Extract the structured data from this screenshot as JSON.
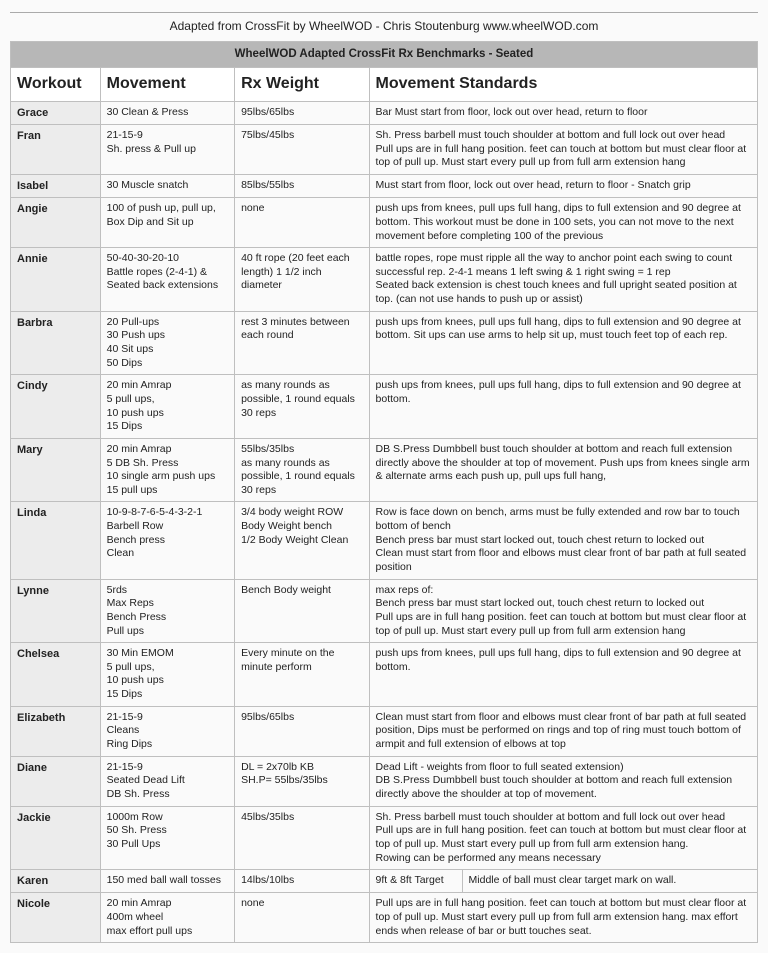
{
  "page_title": "Adapted from CrossFit by WheelWOD - Chris Stoutenburg www.wheelWOD.com",
  "table_banner": "WheelWOD Adapted CrossFit Rx Benchmarks - Seated",
  "columns": {
    "workout": "Workout",
    "movement": "Movement",
    "rx": "Rx Weight",
    "standards": "Movement Standards"
  },
  "rows": [
    {
      "workout": "Grace",
      "movement": "30 Clean & Press",
      "rx": "95lbs/65lbs",
      "standards": "Bar Must start from floor, lock out over head, return to floor"
    },
    {
      "workout": "Fran",
      "movement": "21-15-9\nSh. press & Pull up",
      "rx": "75lbs/45lbs",
      "standards": "Sh. Press barbell must touch shoulder at bottom and full lock out over head\nPull ups are in full hang position. feet can touch at bottom but must clear floor at top of pull up. Must start every pull up from full arm extension hang"
    },
    {
      "workout": "Isabel",
      "movement": "30 Muscle snatch",
      "rx": "85lbs/55lbs",
      "standards": "Must start from floor, lock out over head, return to floor - Snatch grip"
    },
    {
      "workout": "Angie",
      "movement": "100 of push up, pull up, Box Dip and Sit up",
      "rx": "none",
      "standards": "push ups from knees, pull ups full hang, dips to full extension and 90 degree at bottom. This workout must be done in 100 sets, you can not move to the next movement before completing 100 of the previous"
    },
    {
      "workout": "Annie",
      "movement": "50-40-30-20-10\nBattle ropes (2-4-1) & Seated back extensions",
      "rx": "40 ft rope (20 feet each length) 1 1/2 inch diameter",
      "standards": "battle ropes, rope must ripple all the way to anchor point each swing to count successful rep. 2-4-1 means 1 left swing & 1 right swing = 1 rep\nSeated back extension is chest touch knees and full upright seated position at top. (can not use hands to push up or assist)"
    },
    {
      "workout": "Barbra",
      "movement": "20 Pull-ups\n30 Push ups\n40 Sit ups\n50 Dips",
      "rx": "rest 3 minutes between each round",
      "standards": "push ups from knees, pull ups full hang, dips to full extension and 90 degree at bottom. Sit ups can use arms to help sit up, must touch feet top of each rep."
    },
    {
      "workout": "Cindy",
      "movement": "20 min Amrap\n5 pull ups,\n10 push ups\n15 Dips",
      "rx": "as many rounds as possible, 1 round equals 30 reps",
      "standards": "push ups from knees, pull ups full hang, dips to full extension and 90 degree at bottom."
    },
    {
      "workout": "Mary",
      "movement": "20 min Amrap\n5 DB Sh. Press\n10 single arm push ups\n15 pull ups",
      "rx": "55lbs/35lbs\nas many rounds as possible, 1 round equals 30 reps",
      "standards": "DB S.Press Dumbbell bust touch shoulder at bottom and reach full extension directly above the shoulder at top of movement. Push ups from knees single arm & alternate arms each push up,  pull ups full hang,"
    },
    {
      "workout": "Linda",
      "movement": "10-9-8-7-6-5-4-3-2-1\nBarbell Row\nBench press\nClean",
      "rx": "3/4 body weight ROW\nBody Weight bench\n1/2 Body Weight Clean",
      "standards": "Row is face down on bench, arms must be fully extended and row bar to touch bottom of bench\nBench press bar must start locked out, touch chest return to locked out\nClean must start from floor and elbows must clear front of bar path at full seated position"
    },
    {
      "workout": "Lynne",
      "movement": "5rds\nMax Reps\nBench Press\nPull ups",
      "rx": "Bench Body weight",
      "standards": "max reps of:\nBench press bar must start locked out, touch chest return to locked out\nPull ups are in full hang position. feet can touch at bottom but must clear floor at top of pull up. Must start every pull up from full arm extension hang"
    },
    {
      "workout": "Chelsea",
      "movement": "30 Min EMOM\n5 pull ups,\n10 push ups\n15 Dips",
      "rx": "Every minute on the minute perform",
      "standards": "push ups from knees, pull ups full hang, dips to full extension and 90 degree at bottom."
    },
    {
      "workout": "Elizabeth",
      "movement": "21-15-9\nCleans\nRing Dips",
      "rx": "95lbs/65lbs",
      "standards": "Clean must start from floor and elbows must clear front of bar path at full seated position, Dips must be performed on rings and top of ring must touch bottom of armpit and full extension of elbows at top"
    },
    {
      "workout": "Diane",
      "movement": "21-15-9\nSeated Dead Lift\nDB Sh. Press",
      "rx": "DL = 2x70lb KB\nSH.P= 55lbs/35lbs",
      "standards": "Dead Lift - weights from floor to full seated extension)\nDB S.Press Dumbbell bust touch shoulder at bottom and reach full extension directly above the shoulder at top of movement."
    },
    {
      "workout": "Jackie",
      "movement": "1000m Row\n50 Sh. Press\n30 Pull Ups",
      "rx": "45lbs/35lbs",
      "standards": "Sh. Press barbell must touch shoulder at bottom and full lock out over head\nPull ups are in full hang position. feet can touch at bottom but must clear floor at top of pull up. Must start every pull up from full arm extension hang.\nRowing can be performed any means necessary"
    },
    {
      "workout": "Karen",
      "movement": "150 med ball wall tosses",
      "rx": "14lbs/10lbs",
      "standards_split": {
        "left": "9ft & 8ft Target",
        "right": "Middle of ball must clear target mark on wall."
      }
    },
    {
      "workout": "Nicole",
      "movement": "20 min Amrap\n400m wheel\nmax effort pull ups",
      "rx": "none",
      "standards": "Pull ups are in full hang position. feet can touch at bottom but must clear floor at top of pull up. Must start every pull up from full arm extension hang. max effort ends when release of bar or butt touches seat."
    }
  ]
}
